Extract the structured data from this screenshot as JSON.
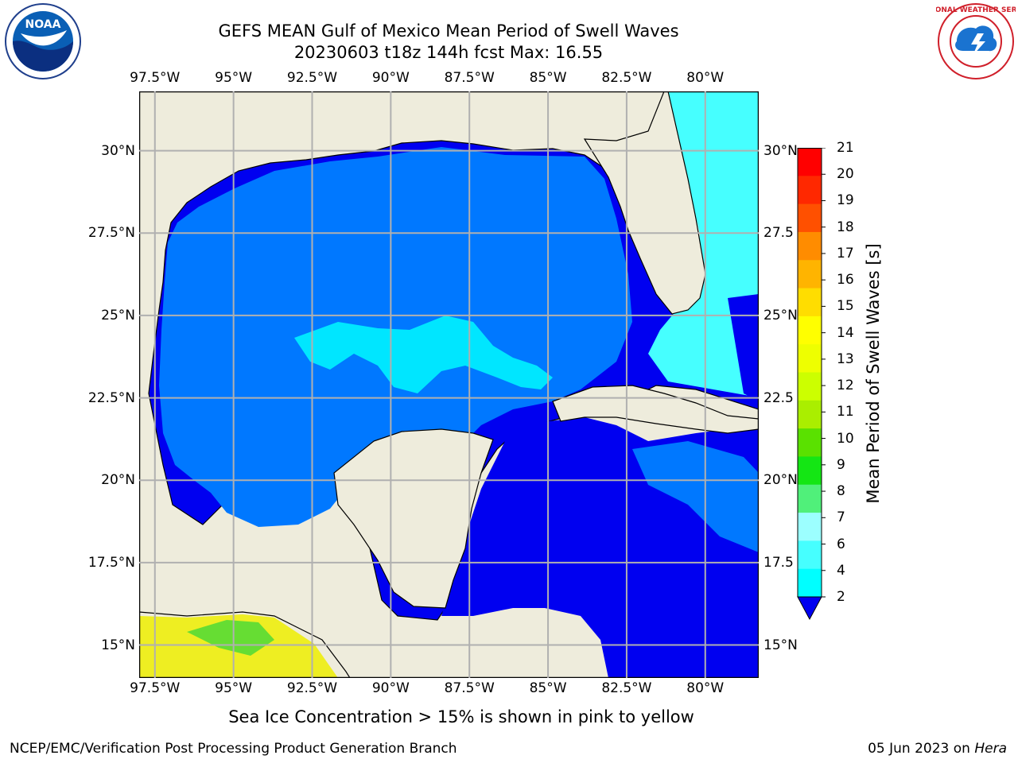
{
  "header": {
    "title": "GEFS MEAN Gulf of Mexico Mean Period of Swell Waves",
    "subtitle": "20230603 t18z 144h fcst   Max: 16.55"
  },
  "logos": {
    "left": "NOAA",
    "right": "NATIONAL WEATHER SERVICE"
  },
  "map": {
    "lon_labels": [
      "97.5°W",
      "95°W",
      "92.5°W",
      "90°W",
      "87.5°W",
      "85°W",
      "82.5°W",
      "80°W"
    ],
    "lon_values": [
      -97.5,
      -95,
      -92.5,
      -90,
      -87.5,
      -85,
      -82.5,
      -80
    ],
    "lat_labels_left": [
      "30°N",
      "27.5°N",
      "25°N",
      "22.5°N",
      "20°N",
      "17.5°N",
      "15°N"
    ],
    "lat_labels_right": [
      "30°N",
      "27.5",
      "25°N",
      "22.5",
      "20°N",
      "17.5",
      "15°N"
    ],
    "lat_values": [
      30,
      27.5,
      25,
      22.5,
      20,
      17.5,
      15
    ],
    "extent": {
      "lon_min": -98,
      "lon_max": -78.3,
      "lat_min": 14,
      "lat_max": 31.8
    },
    "colors": {
      "land": "#eeecdc",
      "grid": "#b0b0b0",
      "coast": "#000000"
    }
  },
  "colorbar": {
    "label": "Mean Period of Swell Waves [s]",
    "ticks": [
      "2",
      "4",
      "6",
      "7",
      "8",
      "9",
      "10",
      "11",
      "12",
      "13",
      "14",
      "15",
      "16",
      "17",
      "18",
      "19",
      "20",
      "21"
    ],
    "colors": [
      "#0000f0",
      "#0078ff",
      "#00d2ff",
      "#00ffff",
      "#46ffff",
      "#9cffff",
      "#50f07a",
      "#14e614",
      "#5ae100",
      "#aaee00",
      "#ccff00",
      "#eeff00",
      "#ffff00",
      "#ffdd00",
      "#ffb400",
      "#ff8c00",
      "#ff5000",
      "#ff2800",
      "#ff0000"
    ]
  },
  "footer": {
    "note": "Sea Ice Concentration > 15% is shown in pink to yellow",
    "credit": "NCEP/EMC/Verification Post Processing Product Generation Branch",
    "date_prefix": "05 Jun 2023 on",
    "machine": "Hera"
  }
}
